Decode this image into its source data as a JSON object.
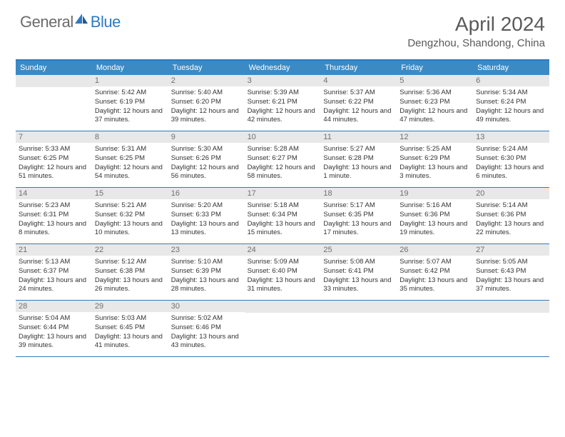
{
  "logo": {
    "text1": "General",
    "text2": "Blue"
  },
  "title": "April 2024",
  "location": "Dengzhou, Shandong, China",
  "colors": {
    "header_bg": "#3b8ac4",
    "border": "#2f7abf",
    "daynum_bg": "#e8e8e8",
    "text": "#333333",
    "muted": "#707070"
  },
  "weekdays": [
    "Sunday",
    "Monday",
    "Tuesday",
    "Wednesday",
    "Thursday",
    "Friday",
    "Saturday"
  ],
  "weeks": [
    [
      null,
      {
        "n": "1",
        "sr": "5:42 AM",
        "ss": "6:19 PM",
        "dl": "12 hours and 37 minutes."
      },
      {
        "n": "2",
        "sr": "5:40 AM",
        "ss": "6:20 PM",
        "dl": "12 hours and 39 minutes."
      },
      {
        "n": "3",
        "sr": "5:39 AM",
        "ss": "6:21 PM",
        "dl": "12 hours and 42 minutes."
      },
      {
        "n": "4",
        "sr": "5:37 AM",
        "ss": "6:22 PM",
        "dl": "12 hours and 44 minutes."
      },
      {
        "n": "5",
        "sr": "5:36 AM",
        "ss": "6:23 PM",
        "dl": "12 hours and 47 minutes."
      },
      {
        "n": "6",
        "sr": "5:34 AM",
        "ss": "6:24 PM",
        "dl": "12 hours and 49 minutes."
      }
    ],
    [
      {
        "n": "7",
        "sr": "5:33 AM",
        "ss": "6:25 PM",
        "dl": "12 hours and 51 minutes."
      },
      {
        "n": "8",
        "sr": "5:31 AM",
        "ss": "6:25 PM",
        "dl": "12 hours and 54 minutes."
      },
      {
        "n": "9",
        "sr": "5:30 AM",
        "ss": "6:26 PM",
        "dl": "12 hours and 56 minutes."
      },
      {
        "n": "10",
        "sr": "5:28 AM",
        "ss": "6:27 PM",
        "dl": "12 hours and 58 minutes."
      },
      {
        "n": "11",
        "sr": "5:27 AM",
        "ss": "6:28 PM",
        "dl": "13 hours and 1 minute."
      },
      {
        "n": "12",
        "sr": "5:25 AM",
        "ss": "6:29 PM",
        "dl": "13 hours and 3 minutes."
      },
      {
        "n": "13",
        "sr": "5:24 AM",
        "ss": "6:30 PM",
        "dl": "13 hours and 6 minutes."
      }
    ],
    [
      {
        "n": "14",
        "sr": "5:23 AM",
        "ss": "6:31 PM",
        "dl": "13 hours and 8 minutes."
      },
      {
        "n": "15",
        "sr": "5:21 AM",
        "ss": "6:32 PM",
        "dl": "13 hours and 10 minutes."
      },
      {
        "n": "16",
        "sr": "5:20 AM",
        "ss": "6:33 PM",
        "dl": "13 hours and 13 minutes."
      },
      {
        "n": "17",
        "sr": "5:18 AM",
        "ss": "6:34 PM",
        "dl": "13 hours and 15 minutes."
      },
      {
        "n": "18",
        "sr": "5:17 AM",
        "ss": "6:35 PM",
        "dl": "13 hours and 17 minutes."
      },
      {
        "n": "19",
        "sr": "5:16 AM",
        "ss": "6:36 PM",
        "dl": "13 hours and 19 minutes."
      },
      {
        "n": "20",
        "sr": "5:14 AM",
        "ss": "6:36 PM",
        "dl": "13 hours and 22 minutes."
      }
    ],
    [
      {
        "n": "21",
        "sr": "5:13 AM",
        "ss": "6:37 PM",
        "dl": "13 hours and 24 minutes."
      },
      {
        "n": "22",
        "sr": "5:12 AM",
        "ss": "6:38 PM",
        "dl": "13 hours and 26 minutes."
      },
      {
        "n": "23",
        "sr": "5:10 AM",
        "ss": "6:39 PM",
        "dl": "13 hours and 28 minutes."
      },
      {
        "n": "24",
        "sr": "5:09 AM",
        "ss": "6:40 PM",
        "dl": "13 hours and 31 minutes."
      },
      {
        "n": "25",
        "sr": "5:08 AM",
        "ss": "6:41 PM",
        "dl": "13 hours and 33 minutes."
      },
      {
        "n": "26",
        "sr": "5:07 AM",
        "ss": "6:42 PM",
        "dl": "13 hours and 35 minutes."
      },
      {
        "n": "27",
        "sr": "5:05 AM",
        "ss": "6:43 PM",
        "dl": "13 hours and 37 minutes."
      }
    ],
    [
      {
        "n": "28",
        "sr": "5:04 AM",
        "ss": "6:44 PM",
        "dl": "13 hours and 39 minutes."
      },
      {
        "n": "29",
        "sr": "5:03 AM",
        "ss": "6:45 PM",
        "dl": "13 hours and 41 minutes."
      },
      {
        "n": "30",
        "sr": "5:02 AM",
        "ss": "6:46 PM",
        "dl": "13 hours and 43 minutes."
      },
      null,
      null,
      null,
      null
    ]
  ]
}
